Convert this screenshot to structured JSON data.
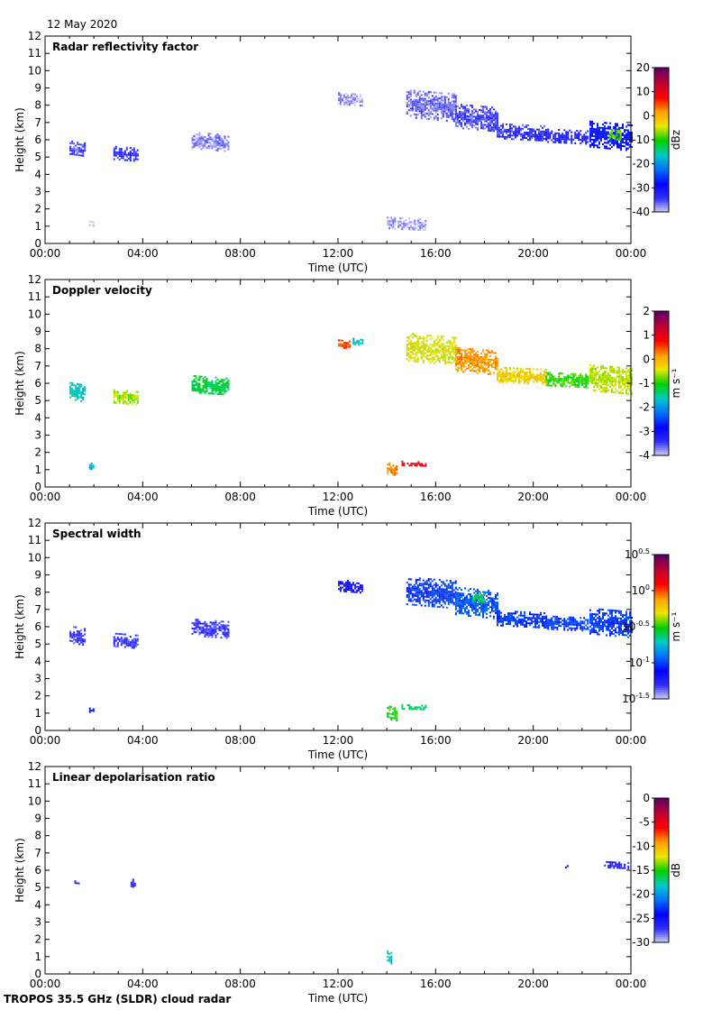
{
  "date_label": "12 May 2020",
  "footer_label": "TROPOS 35.5 GHz (SLDR) cloud radar",
  "colors": {
    "frame": "#000000",
    "background": "#ffffff",
    "colormap": [
      "#d8d8f0",
      "#3030ff",
      "#0000ff",
      "#0070ff",
      "#00c8c8",
      "#00d000",
      "#e8e800",
      "#ffa000",
      "#ff0000",
      "#c00030",
      "#600060"
    ]
  },
  "chart_data": [
    {
      "type": "heatmap",
      "title": "Radar reflectivity factor",
      "xlabel": "Time (UTC)",
      "ylabel": "Height (km)",
      "x_ticks": [
        "00:00",
        "04:00",
        "08:00",
        "12:00",
        "16:00",
        "20:00",
        "00:00"
      ],
      "xlim_hours": [
        0,
        24
      ],
      "ylim": [
        0,
        12
      ],
      "y_ticks": [
        "0",
        "1",
        "2",
        "3",
        "4",
        "5",
        "6",
        "7",
        "8",
        "9",
        "10",
        "11",
        "12"
      ],
      "colorbar": {
        "label": "dBz",
        "min": -40,
        "max": 20,
        "ticks": [
          "20",
          "10",
          "0",
          "-10",
          "-20",
          "-30",
          "-40"
        ]
      },
      "echoes": [
        {
          "t0": 1.0,
          "t1": 1.6,
          "h0": 5.1,
          "h1": 5.9,
          "value": -35
        },
        {
          "t0": 2.8,
          "t1": 3.8,
          "h0": 4.8,
          "h1": 5.6,
          "value": -33
        },
        {
          "t0": 6.0,
          "t1": 7.5,
          "h0": 5.4,
          "h1": 6.4,
          "value": -37
        },
        {
          "t0": 1.8,
          "t1": 2.0,
          "h0": 1.0,
          "h1": 1.4,
          "value": -40
        },
        {
          "t0": 12.0,
          "t1": 13.0,
          "h0": 8.0,
          "h1": 8.7,
          "value": -38
        },
        {
          "t0": 14.8,
          "t1": 16.8,
          "h0": 7.2,
          "h1": 8.8,
          "value": -36
        },
        {
          "t0": 16.8,
          "t1": 18.5,
          "h0": 6.6,
          "h1": 8.0,
          "value": -35
        },
        {
          "t0": 18.5,
          "t1": 20.5,
          "h0": 6.0,
          "h1": 6.9,
          "value": -34
        },
        {
          "t0": 20.5,
          "t1": 22.2,
          "h0": 5.8,
          "h1": 6.6,
          "value": -32
        },
        {
          "t0": 22.3,
          "t1": 24.0,
          "h0": 5.5,
          "h1": 7.0,
          "value": -28
        },
        {
          "t0": 23.1,
          "t1": 23.6,
          "h0": 6.0,
          "h1": 6.6,
          "value": -8
        },
        {
          "t0": 14.0,
          "t1": 15.6,
          "h0": 0.8,
          "h1": 1.5,
          "value": -38
        }
      ]
    },
    {
      "type": "heatmap",
      "title": "Doppler velocity",
      "xlabel": "Time (UTC)",
      "ylabel": "Height (km)",
      "x_ticks": [
        "00:00",
        "04:00",
        "08:00",
        "12:00",
        "16:00",
        "20:00",
        "00:00"
      ],
      "xlim_hours": [
        0,
        24
      ],
      "ylim": [
        0,
        12
      ],
      "y_ticks": [
        "0",
        "1",
        "2",
        "3",
        "4",
        "5",
        "6",
        "7",
        "8",
        "9",
        "10",
        "11",
        "12"
      ],
      "colorbar": {
        "label": "m s⁻¹",
        "min": -4,
        "max": 2,
        "ticks": [
          "2",
          "1",
          "0",
          "-1",
          "-2",
          "-3",
          "-4"
        ]
      },
      "echoes": [
        {
          "t0": 1.0,
          "t1": 1.6,
          "h0": 5.0,
          "h1": 6.0,
          "value": -1.6
        },
        {
          "t0": 2.8,
          "t1": 3.8,
          "h0": 4.8,
          "h1": 5.6,
          "value": -0.6
        },
        {
          "t0": 6.0,
          "t1": 7.5,
          "h0": 5.4,
          "h1": 6.4,
          "value": -1.2
        },
        {
          "t0": 1.8,
          "t1": 2.0,
          "h0": 1.0,
          "h1": 1.4,
          "value": -1.8
        },
        {
          "t0": 12.0,
          "t1": 12.5,
          "h0": 8.0,
          "h1": 8.5,
          "value": 0.5
        },
        {
          "t0": 12.6,
          "t1": 13.0,
          "h0": 8.2,
          "h1": 8.7,
          "value": -1.6
        },
        {
          "t0": 14.8,
          "t1": 16.8,
          "h0": 7.2,
          "h1": 8.8,
          "value": -0.4
        },
        {
          "t0": 16.8,
          "t1": 18.5,
          "h0": 6.6,
          "h1": 8.0,
          "value": 0.2
        },
        {
          "t0": 18.5,
          "t1": 20.5,
          "h0": 6.0,
          "h1": 6.9,
          "value": -0.2
        },
        {
          "t0": 20.5,
          "t1": 22.2,
          "h0": 5.8,
          "h1": 6.6,
          "value": -0.9
        },
        {
          "t0": 22.3,
          "t1": 24.0,
          "h0": 5.5,
          "h1": 7.0,
          "value": -0.5
        },
        {
          "t0": 14.0,
          "t1": 14.4,
          "h0": 0.7,
          "h1": 1.4,
          "value": 0.3
        },
        {
          "t0": 14.6,
          "t1": 15.6,
          "h0": 1.2,
          "h1": 1.5,
          "value": 1.0
        }
      ]
    },
    {
      "type": "heatmap",
      "title": "Spectral width",
      "xlabel": "Time (UTC)",
      "ylabel": "Height (km)",
      "x_ticks": [
        "00:00",
        "04:00",
        "08:00",
        "12:00",
        "16:00",
        "20:00",
        "00:00"
      ],
      "xlim_hours": [
        0,
        24
      ],
      "ylim": [
        0,
        12
      ],
      "y_ticks": [
        "0",
        "1",
        "2",
        "3",
        "4",
        "5",
        "6",
        "7",
        "8",
        "9",
        "10",
        "11",
        "12"
      ],
      "colorbar": {
        "label": "m s⁻¹",
        "min": -1.5,
        "max": 0.5,
        "scale": "log10",
        "ticks": [
          {
            "base": "10",
            "exp": "0.5"
          },
          {
            "base": "10",
            "exp": "0"
          },
          {
            "base": "10",
            "exp": "-0.5"
          },
          {
            "base": "10",
            "exp": "-1"
          },
          {
            "base": "10",
            "exp": "-1.5"
          }
        ]
      },
      "echoes": [
        {
          "t0": 1.0,
          "t1": 1.6,
          "h0": 5.0,
          "h1": 6.0,
          "value": -1.3
        },
        {
          "t0": 2.8,
          "t1": 3.8,
          "h0": 4.8,
          "h1": 5.6,
          "value": -1.3
        },
        {
          "t0": 6.0,
          "t1": 7.5,
          "h0": 5.4,
          "h1": 6.4,
          "value": -1.3
        },
        {
          "t0": 1.8,
          "t1": 2.0,
          "h0": 1.0,
          "h1": 1.4,
          "value": -1.1
        },
        {
          "t0": 12.0,
          "t1": 13.0,
          "h0": 8.0,
          "h1": 8.7,
          "value": -1.2
        },
        {
          "t0": 14.8,
          "t1": 16.8,
          "h0": 7.2,
          "h1": 8.8,
          "value": -1.0
        },
        {
          "t0": 16.8,
          "t1": 18.5,
          "h0": 6.6,
          "h1": 8.2,
          "value": -0.95
        },
        {
          "t0": 17.5,
          "t1": 18.0,
          "h0": 7.4,
          "h1": 8.0,
          "value": -0.6
        },
        {
          "t0": 18.5,
          "t1": 20.5,
          "h0": 6.0,
          "h1": 6.9,
          "value": -1.0
        },
        {
          "t0": 20.5,
          "t1": 22.2,
          "h0": 5.8,
          "h1": 6.6,
          "value": -1.0
        },
        {
          "t0": 22.3,
          "t1": 24.0,
          "h0": 5.5,
          "h1": 7.0,
          "value": -1.0
        },
        {
          "t0": 14.0,
          "t1": 14.4,
          "h0": 0.6,
          "h1": 1.4,
          "value": -0.5
        },
        {
          "t0": 14.6,
          "t1": 15.6,
          "h0": 1.2,
          "h1": 1.5,
          "value": -0.6
        }
      ]
    },
    {
      "type": "heatmap",
      "title": "Linear depolarisation ratio",
      "xlabel": "Time (UTC)",
      "ylabel": "Height (km)",
      "x_ticks": [
        "00:00",
        "04:00",
        "08:00",
        "12:00",
        "16:00",
        "20:00",
        "00:00"
      ],
      "xlim_hours": [
        0,
        24
      ],
      "ylim": [
        0,
        12
      ],
      "y_ticks": [
        "0",
        "1",
        "2",
        "3",
        "4",
        "5",
        "6",
        "7",
        "8",
        "9",
        "10",
        "11",
        "12"
      ],
      "colorbar": {
        "label": "dB",
        "min": -30,
        "max": 0,
        "ticks": [
          "0",
          "-5",
          "-10",
          "-15",
          "-20",
          "-25",
          "-30"
        ]
      },
      "echoes": [
        {
          "t0": 1.2,
          "t1": 1.4,
          "h0": 5.2,
          "h1": 5.4,
          "value": -26
        },
        {
          "t0": 3.5,
          "t1": 3.7,
          "h0": 4.9,
          "h1": 5.5,
          "value": -26
        },
        {
          "t0": 14.0,
          "t1": 14.2,
          "h0": 0.6,
          "h1": 1.3,
          "value": -18
        },
        {
          "t0": 21.3,
          "t1": 21.4,
          "h0": 6.1,
          "h1": 6.3,
          "value": -25
        },
        {
          "t0": 22.9,
          "t1": 23.9,
          "h0": 6.1,
          "h1": 6.5,
          "value": -26
        }
      ]
    }
  ]
}
